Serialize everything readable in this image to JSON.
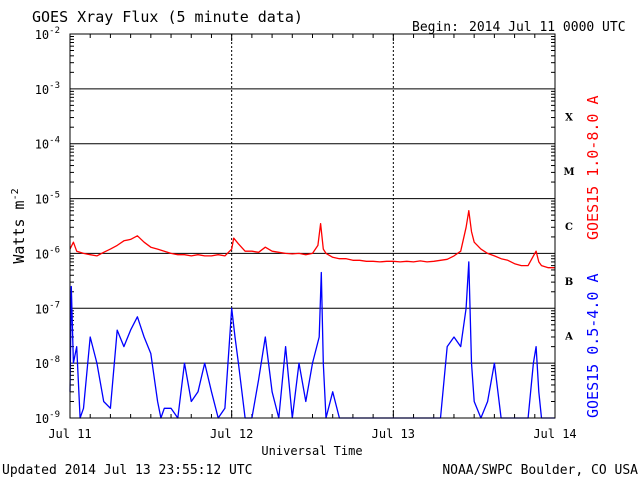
{
  "title": "GOES Xray Flux (5 minute data)",
  "begin_label": "Begin:",
  "begin_value": "2014 Jul 11 0000 UTC",
  "footer_left": "Updated 2014 Jul 13 23:55:12 UTC",
  "footer_right": "NOAA/SWPC Boulder, CO USA",
  "chart_data": {
    "type": "line",
    "title": "GOES Xray Flux (5 minute data)",
    "xlabel": "Universal Time",
    "ylabel": "Watts m",
    "ylabel_superscript": "-2",
    "yscale": "log",
    "ylim": [
      1e-09,
      0.01
    ],
    "xlim": [
      0,
      72
    ],
    "x_unit_note": "hours",
    "x_tick_values": [
      0,
      24,
      48,
      72
    ],
    "x_tick_labels": [
      "Jul 11",
      "Jul 12",
      "Jul 13",
      "Jul 14"
    ],
    "y_tick_exponents": [
      -9,
      -8,
      -7,
      -6,
      -5,
      -4,
      -3,
      -2
    ],
    "y_tick_base": "10",
    "grid": true,
    "flare_classes": [
      {
        "label": "A",
        "exponent": -7.5
      },
      {
        "label": "B",
        "exponent": -6.5
      },
      {
        "label": "C",
        "exponent": -5.5
      },
      {
        "label": "M",
        "exponent": -4.5
      },
      {
        "label": "X",
        "exponent": -3.5
      }
    ],
    "series": [
      {
        "name": "GOES15 1.0-8.0 A",
        "color": "#ff0000",
        "points": [
          [
            0,
            1.2e-06
          ],
          [
            0.5,
            1.6e-06
          ],
          [
            1,
            1.1e-06
          ],
          [
            2,
            1e-06
          ],
          [
            3,
            9.5e-07
          ],
          [
            4,
            9e-07
          ],
          [
            5,
            1.05e-06
          ],
          [
            6,
            1.2e-06
          ],
          [
            7,
            1.4e-06
          ],
          [
            8,
            1.7e-06
          ],
          [
            9,
            1.8e-06
          ],
          [
            10,
            2.1e-06
          ],
          [
            11,
            1.6e-06
          ],
          [
            12,
            1.3e-06
          ],
          [
            13,
            1.2e-06
          ],
          [
            14,
            1.1e-06
          ],
          [
            15,
            1e-06
          ],
          [
            16,
            9.5e-07
          ],
          [
            17,
            9.5e-07
          ],
          [
            18,
            9e-07
          ],
          [
            19,
            9.5e-07
          ],
          [
            20,
            9e-07
          ],
          [
            21,
            9e-07
          ],
          [
            22,
            9.5e-07
          ],
          [
            23,
            9e-07
          ],
          [
            24,
            1.2e-06
          ],
          [
            24.3,
            1.9e-06
          ],
          [
            25,
            1.5e-06
          ],
          [
            26,
            1.1e-06
          ],
          [
            27,
            1.1e-06
          ],
          [
            28,
            1.05e-06
          ],
          [
            29,
            1.3e-06
          ],
          [
            30,
            1.1e-06
          ],
          [
            31,
            1.05e-06
          ],
          [
            32,
            1e-06
          ],
          [
            33,
            9.8e-07
          ],
          [
            34,
            1e-06
          ],
          [
            35,
            9.5e-07
          ],
          [
            36,
            1e-06
          ],
          [
            36.8,
            1.4e-06
          ],
          [
            37.2,
            3.5e-06
          ],
          [
            37.6,
            1.2e-06
          ],
          [
            38,
            1e-06
          ],
          [
            39,
            8.5e-07
          ],
          [
            40,
            8e-07
          ],
          [
            41,
            8e-07
          ],
          [
            42,
            7.5e-07
          ],
          [
            43,
            7.5e-07
          ],
          [
            44,
            7.2e-07
          ],
          [
            45,
            7.2e-07
          ],
          [
            46,
            7e-07
          ],
          [
            47,
            7.2e-07
          ],
          [
            48,
            7.2e-07
          ],
          [
            49,
            7e-07
          ],
          [
            50,
            7.2e-07
          ],
          [
            51,
            7e-07
          ],
          [
            52,
            7.3e-07
          ],
          [
            53,
            7e-07
          ],
          [
            54,
            7.2e-07
          ],
          [
            55,
            7.5e-07
          ],
          [
            56,
            7.8e-07
          ],
          [
            57,
            9e-07
          ],
          [
            58,
            1.1e-06
          ],
          [
            58.8,
            3e-06
          ],
          [
            59.2,
            6e-06
          ],
          [
            59.6,
            2.5e-06
          ],
          [
            60,
            1.6e-06
          ],
          [
            61,
            1.2e-06
          ],
          [
            62,
            1e-06
          ],
          [
            63,
            9e-07
          ],
          [
            64,
            8e-07
          ],
          [
            65,
            7.5e-07
          ],
          [
            66,
            6.5e-07
          ],
          [
            67,
            6e-07
          ],
          [
            68,
            6e-07
          ],
          [
            68.8,
            9e-07
          ],
          [
            69.2,
            1.1e-06
          ],
          [
            69.6,
            7e-07
          ],
          [
            70,
            6e-07
          ],
          [
            71,
            5.5e-07
          ],
          [
            72,
            5.5e-07
          ]
        ]
      },
      {
        "name": "GOES15 0.5-4.0 A",
        "color": "#0000ff",
        "points": [
          [
            0,
            3e-09
          ],
          [
            0.2,
            2.5e-07
          ],
          [
            0.5,
            1e-08
          ],
          [
            1,
            2e-08
          ],
          [
            1.5,
            1e-09
          ],
          [
            2,
            1.5e-09
          ],
          [
            3,
            3e-08
          ],
          [
            4,
            1e-08
          ],
          [
            5,
            2e-09
          ],
          [
            6,
            1.5e-09
          ],
          [
            7,
            4e-08
          ],
          [
            8,
            2e-08
          ],
          [
            9,
            4e-08
          ],
          [
            10,
            7e-08
          ],
          [
            11,
            3e-08
          ],
          [
            12,
            1.5e-08
          ],
          [
            13,
            2e-09
          ],
          [
            13.5,
            1e-09
          ],
          [
            14,
            1.5e-09
          ],
          [
            15,
            1.5e-09
          ],
          [
            16,
            1e-09
          ],
          [
            17,
            1e-08
          ],
          [
            18,
            2e-09
          ],
          [
            19,
            3e-09
          ],
          [
            20,
            1e-08
          ],
          [
            21,
            3e-09
          ],
          [
            22,
            1e-09
          ],
          [
            23,
            1.5e-09
          ],
          [
            24,
            1e-07
          ],
          [
            24.5,
            3e-08
          ],
          [
            25,
            1e-08
          ],
          [
            26,
            1e-09
          ],
          [
            27,
            1e-09
          ],
          [
            28,
            5e-09
          ],
          [
            29,
            3e-08
          ],
          [
            30,
            3e-09
          ],
          [
            31,
            1e-09
          ],
          [
            32,
            2e-08
          ],
          [
            33,
            1e-09
          ],
          [
            34,
            1e-08
          ],
          [
            35,
            2e-09
          ],
          [
            36,
            1e-08
          ],
          [
            37,
            3e-08
          ],
          [
            37.3,
            4.5e-07
          ],
          [
            37.6,
            1e-08
          ],
          [
            38,
            1e-09
          ],
          [
            39,
            3e-09
          ],
          [
            40,
            1e-09
          ],
          [
            41,
            1e-09
          ],
          [
            42,
            1e-09
          ],
          [
            43,
            1e-09
          ],
          [
            44,
            1e-09
          ],
          [
            45,
            1e-09
          ],
          [
            46,
            1e-09
          ],
          [
            47,
            1e-09
          ],
          [
            48,
            1e-09
          ],
          [
            49,
            1e-09
          ],
          [
            50,
            1e-09
          ],
          [
            51,
            1e-09
          ],
          [
            52,
            1e-09
          ],
          [
            53,
            1e-09
          ],
          [
            54,
            1e-09
          ],
          [
            55,
            1e-09
          ],
          [
            56,
            2e-08
          ],
          [
            57,
            3e-08
          ],
          [
            58,
            2e-08
          ],
          [
            58.8,
            1e-07
          ],
          [
            59.2,
            7e-07
          ],
          [
            59.6,
            1e-08
          ],
          [
            60,
            2e-09
          ],
          [
            61,
            1e-09
          ],
          [
            62,
            2e-09
          ],
          [
            63,
            1e-08
          ],
          [
            64,
            1e-09
          ],
          [
            65,
            1e-09
          ],
          [
            66,
            1e-09
          ],
          [
            67,
            1e-09
          ],
          [
            68,
            1e-09
          ],
          [
            68.8,
            1e-08
          ],
          [
            69.2,
            2e-08
          ],
          [
            69.6,
            3e-09
          ],
          [
            70,
            1e-09
          ],
          [
            71,
            1e-09
          ],
          [
            72,
            1e-09
          ]
        ]
      }
    ]
  }
}
